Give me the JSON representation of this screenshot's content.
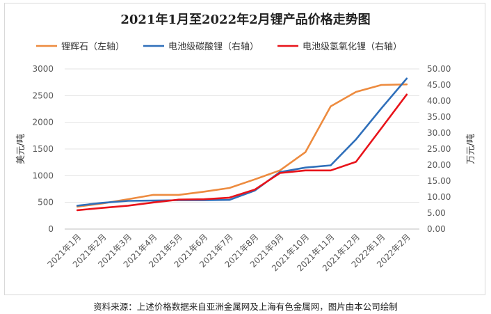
{
  "chart_data": {
    "type": "line",
    "title": "2021年1月至2022年2月锂产品价格走势图",
    "categories": [
      "2021年1月",
      "2021年2月",
      "2021年3月",
      "2021年4月",
      "2021年5月",
      "2021年6月",
      "2021年7月",
      "2021年8月",
      "2021年9月",
      "2021年10月",
      "2021年11月",
      "2021年12月",
      "2022年1月",
      "2022年2月"
    ],
    "ylabel_left": "美元/吨",
    "ylabel_right": "万元/吨",
    "ylim_left": [
      0,
      3000
    ],
    "ylim_right": [
      0,
      50
    ],
    "yticks_left": [
      "0",
      "500",
      "1000",
      "1500",
      "2000",
      "2500",
      "3000"
    ],
    "yticks_right": [
      "0.00",
      "5.00",
      "10.00",
      "15.00",
      "20.00",
      "25.00",
      "30.00",
      "35.00",
      "40.00",
      "45.00",
      "50.00"
    ],
    "grid": "horizontal",
    "legend_position": "top",
    "series": [
      {
        "name": "锂辉石（左轴）",
        "axis": "left",
        "color": "#ED8B3F",
        "values": [
          420,
          480,
          560,
          640,
          640,
          700,
          770,
          930,
          1100,
          1440,
          2300,
          2570,
          2700,
          2710
        ]
      },
      {
        "name": "电池级碳酸锂（右轴）",
        "axis": "right",
        "color": "#2F6FBA",
        "values": [
          7.3,
          8.2,
          8.8,
          8.9,
          9.0,
          9.0,
          9.1,
          12.0,
          17.8,
          19.2,
          19.9,
          28.0,
          37.7,
          47.0
        ]
      },
      {
        "name": "电池级氢氧化锂（右轴）",
        "axis": "right",
        "color": "#E8131A",
        "values": [
          5.9,
          6.6,
          7.3,
          8.3,
          9.2,
          9.3,
          9.8,
          12.3,
          17.5,
          18.3,
          18.3,
          21.0,
          31.5,
          42.0
        ]
      }
    ]
  },
  "footer": {
    "source": "资料来源：上述价格数据来自亚洲金属网及上海有色金属网，图片由本公司绘制"
  }
}
